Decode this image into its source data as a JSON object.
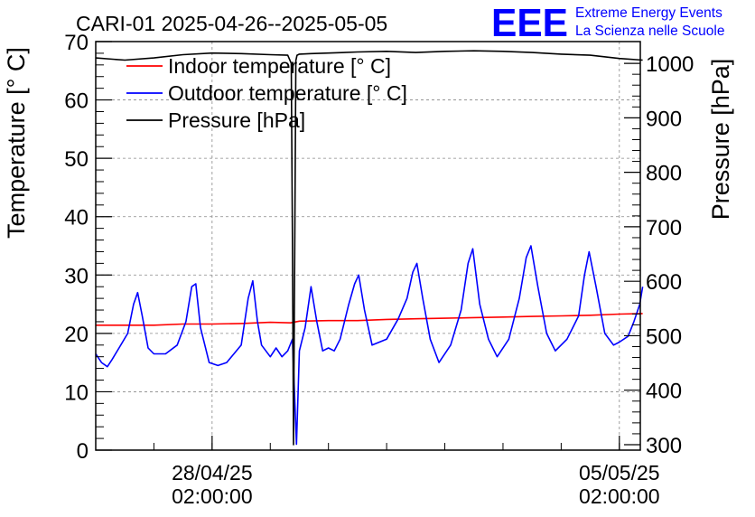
{
  "chart_data": {
    "type": "line",
    "title": "CARI-01 2025-04-26--2025-05-05",
    "logo": {
      "text": "EEE",
      "line1": "Extreme Energy Events",
      "line2": "La Scienza nelle Scuole",
      "color": "#0000ff"
    },
    "ylabel": "Temperature [° C]",
    "y2label": "Pressure [hPa]",
    "ylim": [
      0,
      70
    ],
    "y2lim": [
      290,
      1040
    ],
    "xlim": [
      0,
      9.36
    ],
    "yticks": [
      0,
      10,
      20,
      30,
      40,
      50,
      60,
      70
    ],
    "y2ticks": [
      300,
      400,
      500,
      600,
      700,
      800,
      900,
      1000
    ],
    "xticks": [
      {
        "x": 2.0,
        "date": "28/04/25",
        "time": "02:00:00"
      },
      {
        "x": 9.0,
        "date": "05/05/25",
        "time": "02:00:00"
      }
    ],
    "grid": true,
    "legend_position": "top-left",
    "series": [
      {
        "name": "Indoor temperature [° C]",
        "axis": "left",
        "color": "#ff0000",
        "x": [
          0.0,
          1.0,
          1.5,
          2.0,
          2.5,
          3.0,
          3.35,
          3.5,
          4.0,
          4.5,
          5.0,
          5.5,
          6.0,
          6.5,
          7.0,
          7.5,
          8.0,
          8.5,
          9.0,
          9.4
        ],
        "y": [
          21.4,
          21.4,
          21.6,
          21.6,
          21.7,
          21.9,
          21.8,
          22.1,
          22.2,
          22.2,
          22.4,
          22.5,
          22.6,
          22.7,
          22.8,
          22.9,
          23.0,
          23.1,
          23.3,
          23.4
        ]
      },
      {
        "name": "Outdoor temperature [° C]",
        "axis": "left",
        "color": "#0000ff",
        "x": [
          0.0,
          0.1,
          0.2,
          0.28,
          0.4,
          0.55,
          0.65,
          0.72,
          0.8,
          0.9,
          1.0,
          1.2,
          1.4,
          1.55,
          1.65,
          1.72,
          1.8,
          1.95,
          2.1,
          2.25,
          2.5,
          2.62,
          2.7,
          2.78,
          2.85,
          3.0,
          3.1,
          3.2,
          3.3,
          3.38,
          3.45,
          3.5,
          3.6,
          3.7,
          3.8,
          3.9,
          4.0,
          4.1,
          4.2,
          4.35,
          4.45,
          4.52,
          4.62,
          4.75,
          5.0,
          5.2,
          5.35,
          5.45,
          5.52,
          5.62,
          5.75,
          5.9,
          6.1,
          6.28,
          6.4,
          6.48,
          6.6,
          6.75,
          6.9,
          7.1,
          7.28,
          7.4,
          7.48,
          7.6,
          7.75,
          7.9,
          8.1,
          8.3,
          8.4,
          8.48,
          8.6,
          8.75,
          8.9,
          9.0,
          9.15,
          9.25,
          9.35,
          9.4
        ],
        "y": [
          16.5,
          15.0,
          14.3,
          15.5,
          17.5,
          20.0,
          25.0,
          27.0,
          23.0,
          17.5,
          16.5,
          16.5,
          18.0,
          22.0,
          28.0,
          28.5,
          21.0,
          15.0,
          14.5,
          15.0,
          18.0,
          26.0,
          29.0,
          22.0,
          18.0,
          16.0,
          17.5,
          16.0,
          17.0,
          19.0,
          1.0,
          17.0,
          21.0,
          28.0,
          22.0,
          17.0,
          17.5,
          17.0,
          19.0,
          25.0,
          28.5,
          30.0,
          24.0,
          18.0,
          19.0,
          22.5,
          26.0,
          30.5,
          32.0,
          26.0,
          19.0,
          15.0,
          18.0,
          24.0,
          32.0,
          34.5,
          25.0,
          19.0,
          16.0,
          19.0,
          26.0,
          33.0,
          35.0,
          28.0,
          20.0,
          17.0,
          19.0,
          23.0,
          30.0,
          34.0,
          28.0,
          20.0,
          18.0,
          18.5,
          19.5,
          22.0,
          25.0,
          28.0
        ]
      },
      {
        "name": "Pressure [hPa]",
        "axis": "right",
        "color": "#000000",
        "x": [
          0.0,
          0.5,
          1.0,
          1.5,
          2.0,
          2.5,
          3.0,
          3.3,
          3.36,
          3.38,
          3.4,
          3.42,
          3.44,
          3.46,
          3.5,
          3.7,
          4.0,
          4.5,
          5.0,
          5.5,
          6.0,
          6.5,
          7.0,
          7.5,
          8.0,
          8.5,
          9.0,
          9.4
        ],
        "y": [
          1010,
          1006,
          1010,
          1016,
          1019,
          1018,
          1016,
          1015,
          1000,
          680,
          300,
          640,
          1005,
          1015,
          1017,
          1018,
          1019,
          1021,
          1022,
          1020,
          1022,
          1023,
          1022,
          1020,
          1017,
          1015,
          1009,
          1006
        ]
      }
    ]
  }
}
